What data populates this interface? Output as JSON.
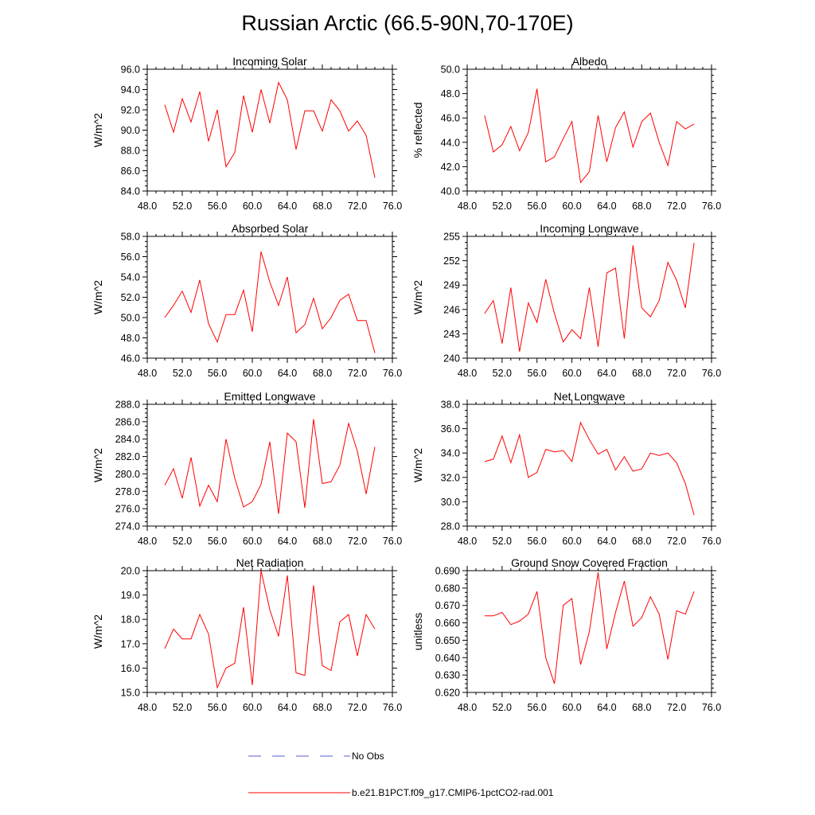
{
  "title": "Russian Arctic (66.5-90N,70-170E)",
  "legend": {
    "obs_label": "No Obs",
    "model_label": "b.e21.B1PCT.f09_g17.CMIP6-1pctCO2-rad.001",
    "obs_color": "#5b5bd6",
    "model_color": "#ff0000"
  },
  "chart_data": [
    {
      "type": "line",
      "title": "Incoming Solar",
      "ylabel": "W/m^2",
      "xlim": [
        48,
        76
      ],
      "ylim": [
        84,
        96
      ],
      "xticks": [
        48,
        52,
        56,
        60,
        64,
        68,
        72,
        76
      ],
      "yticks": [
        84,
        86,
        88,
        90,
        92,
        94,
        96
      ],
      "tick_decimals": 1,
      "series": [
        {
          "name": "b.e21.B1PCT.f09_g17.CMIP6-1pctCO2-rad.001",
          "x": [
            50,
            51,
            52,
            53,
            54,
            55,
            56,
            57,
            58,
            59,
            60,
            61,
            62,
            63,
            64,
            65,
            66,
            67,
            68,
            69,
            70,
            71,
            72,
            73,
            74
          ],
          "values": [
            92.5,
            89.8,
            93.1,
            90.8,
            93.8,
            88.9,
            92.0,
            86.4,
            87.8,
            93.4,
            89.8,
            94.0,
            90.7,
            94.7,
            93.0,
            88.1,
            91.9,
            91.9,
            89.9,
            93.0,
            91.9,
            89.9,
            90.9,
            89.5,
            85.3
          ]
        }
      ]
    },
    {
      "type": "line",
      "title": "Albedo",
      "ylabel": "% reflected",
      "xlim": [
        48,
        76
      ],
      "ylim": [
        40,
        50
      ],
      "xticks": [
        48,
        52,
        56,
        60,
        64,
        68,
        72,
        76
      ],
      "yticks": [
        40,
        42,
        44,
        46,
        48,
        50
      ],
      "tick_decimals": 1,
      "series": [
        {
          "name": "b.e21.B1PCT.f09_g17.CMIP6-1pctCO2-rad.001",
          "x": [
            50,
            51,
            52,
            53,
            54,
            55,
            56,
            57,
            58,
            59,
            60,
            61,
            62,
            63,
            64,
            65,
            66,
            67,
            68,
            69,
            70,
            71,
            72,
            73,
            74
          ],
          "values": [
            46.2,
            43.2,
            43.8,
            45.3,
            43.3,
            44.8,
            48.4,
            42.4,
            42.8,
            44.3,
            45.7,
            40.7,
            41.6,
            46.2,
            42.4,
            45.2,
            46.5,
            43.6,
            45.7,
            46.4,
            44.0,
            42.1,
            45.7,
            45.1,
            45.5
          ]
        }
      ]
    },
    {
      "type": "line",
      "title": "Absorbed Solar",
      "ylabel": "W/m^2",
      "xlim": [
        48,
        76
      ],
      "ylim": [
        46,
        58
      ],
      "xticks": [
        48,
        52,
        56,
        60,
        64,
        68,
        72,
        76
      ],
      "yticks": [
        46,
        48,
        50,
        52,
        54,
        56,
        58
      ],
      "tick_decimals": 1,
      "series": [
        {
          "name": "b.e21.B1PCT.f09_g17.CMIP6-1pctCO2-rad.001",
          "x": [
            50,
            51,
            52,
            53,
            54,
            55,
            56,
            57,
            58,
            59,
            60,
            61,
            62,
            63,
            64,
            65,
            66,
            67,
            68,
            69,
            70,
            71,
            72,
            73,
            74
          ],
          "values": [
            50.0,
            51.2,
            52.6,
            50.5,
            53.7,
            49.4,
            47.6,
            50.3,
            50.3,
            52.7,
            48.6,
            56.5,
            53.5,
            51.2,
            54.0,
            48.5,
            49.3,
            51.9,
            48.9,
            50.0,
            51.7,
            52.3,
            49.7,
            49.7,
            46.5
          ]
        }
      ]
    },
    {
      "type": "line",
      "title": "Incoming Longwave",
      "ylabel": "W/m^2",
      "xlim": [
        48,
        76
      ],
      "ylim": [
        240,
        255
      ],
      "xticks": [
        48,
        52,
        56,
        60,
        64,
        68,
        72,
        76
      ],
      "yticks": [
        240,
        243,
        246,
        249,
        252,
        255
      ],
      "tick_decimals": 0,
      "series": [
        {
          "name": "b.e21.B1PCT.f09_g17.CMIP6-1pctCO2-rad.001",
          "x": [
            50,
            51,
            52,
            53,
            54,
            55,
            56,
            57,
            58,
            59,
            60,
            61,
            62,
            63,
            64,
            65,
            66,
            67,
            68,
            69,
            70,
            71,
            72,
            73,
            74
          ],
          "values": [
            245.5,
            247.1,
            241.8,
            248.7,
            240.8,
            246.8,
            244.4,
            249.7,
            245.5,
            242.0,
            243.5,
            242.4,
            248.7,
            241.4,
            250.5,
            251.1,
            242.4,
            253.9,
            246.2,
            245.1,
            247.1,
            251.8,
            249.6,
            246.2,
            254.2
          ]
        }
      ]
    },
    {
      "type": "line",
      "title": "Emitted Longwave",
      "ylabel": "W/m^2",
      "xlim": [
        48,
        76
      ],
      "ylim": [
        274,
        288
      ],
      "xticks": [
        48,
        52,
        56,
        60,
        64,
        68,
        72,
        76
      ],
      "yticks": [
        274,
        276,
        278,
        280,
        282,
        284,
        286,
        288
      ],
      "tick_decimals": 1,
      "series": [
        {
          "name": "b.e21.B1PCT.f09_g17.CMIP6-1pctCO2-rad.001",
          "x": [
            50,
            51,
            52,
            53,
            54,
            55,
            56,
            57,
            58,
            59,
            60,
            61,
            62,
            63,
            64,
            65,
            66,
            67,
            68,
            69,
            70,
            71,
            72,
            73,
            74
          ],
          "values": [
            278.7,
            280.6,
            277.2,
            281.9,
            276.3,
            278.7,
            276.8,
            284.0,
            279.5,
            276.2,
            276.8,
            278.8,
            283.7,
            275.4,
            284.7,
            283.7,
            276.1,
            286.3,
            278.9,
            279.1,
            281.0,
            285.8,
            282.6,
            277.7,
            283.1
          ]
        }
      ]
    },
    {
      "type": "line",
      "title": "Net Longwave",
      "ylabel": "W/m^2",
      "xlim": [
        48,
        76
      ],
      "ylim": [
        28,
        38
      ],
      "xticks": [
        48,
        52,
        56,
        60,
        64,
        68,
        72,
        76
      ],
      "yticks": [
        28,
        30,
        32,
        34,
        36,
        38
      ],
      "tick_decimals": 1,
      "series": [
        {
          "name": "b.e21.B1PCT.f09_g17.CMIP6-1pctCO2-rad.001",
          "x": [
            50,
            51,
            52,
            53,
            54,
            55,
            56,
            57,
            58,
            59,
            60,
            61,
            62,
            63,
            64,
            65,
            66,
            67,
            68,
            69,
            70,
            71,
            72,
            73,
            74
          ],
          "values": [
            33.3,
            33.5,
            35.4,
            33.2,
            35.5,
            32.0,
            32.4,
            34.3,
            34.1,
            34.2,
            33.3,
            36.5,
            35.1,
            33.9,
            34.3,
            32.6,
            33.7,
            32.5,
            32.7,
            34.0,
            33.8,
            34.0,
            33.2,
            31.5,
            28.9
          ]
        }
      ]
    },
    {
      "type": "line",
      "title": "Net Radiation",
      "ylabel": "W/m^2",
      "xlim": [
        48,
        76
      ],
      "ylim": [
        15,
        20
      ],
      "xticks": [
        48,
        52,
        56,
        60,
        64,
        68,
        72,
        76
      ],
      "yticks": [
        15,
        16,
        17,
        18,
        19,
        20
      ],
      "tick_decimals": 1,
      "series": [
        {
          "name": "b.e21.B1PCT.f09_g17.CMIP6-1pctCO2-rad.001",
          "x": [
            50,
            51,
            52,
            53,
            54,
            55,
            56,
            57,
            58,
            59,
            60,
            61,
            62,
            63,
            64,
            65,
            66,
            67,
            68,
            69,
            70,
            71,
            72,
            73,
            74
          ],
          "values": [
            16.8,
            17.6,
            17.2,
            17.2,
            18.2,
            17.4,
            15.2,
            16.0,
            16.2,
            18.5,
            15.3,
            20.0,
            18.4,
            17.3,
            19.8,
            15.8,
            15.7,
            19.4,
            16.1,
            15.9,
            17.9,
            18.2,
            16.5,
            18.2,
            17.6
          ]
        }
      ]
    },
    {
      "type": "line",
      "title": "Ground Snow Covered Fraction",
      "ylabel": "unitless",
      "xlim": [
        48,
        76
      ],
      "ylim": [
        0.62,
        0.69
      ],
      "xticks": [
        48,
        52,
        56,
        60,
        64,
        68,
        72,
        76
      ],
      "yticks": [
        0.62,
        0.63,
        0.64,
        0.65,
        0.66,
        0.67,
        0.68,
        0.69
      ],
      "tick_decimals": 3,
      "series": [
        {
          "name": "b.e21.B1PCT.f09_g17.CMIP6-1pctCO2-rad.001",
          "x": [
            50,
            51,
            52,
            53,
            54,
            55,
            56,
            57,
            58,
            59,
            60,
            61,
            62,
            63,
            64,
            65,
            66,
            67,
            68,
            69,
            70,
            71,
            72,
            73,
            74
          ],
          "values": [
            0.664,
            0.664,
            0.666,
            0.659,
            0.661,
            0.665,
            0.678,
            0.64,
            0.625,
            0.67,
            0.674,
            0.636,
            0.655,
            0.689,
            0.645,
            0.666,
            0.684,
            0.658,
            0.663,
            0.675,
            0.665,
            0.639,
            0.667,
            0.665,
            0.678
          ]
        }
      ]
    }
  ]
}
